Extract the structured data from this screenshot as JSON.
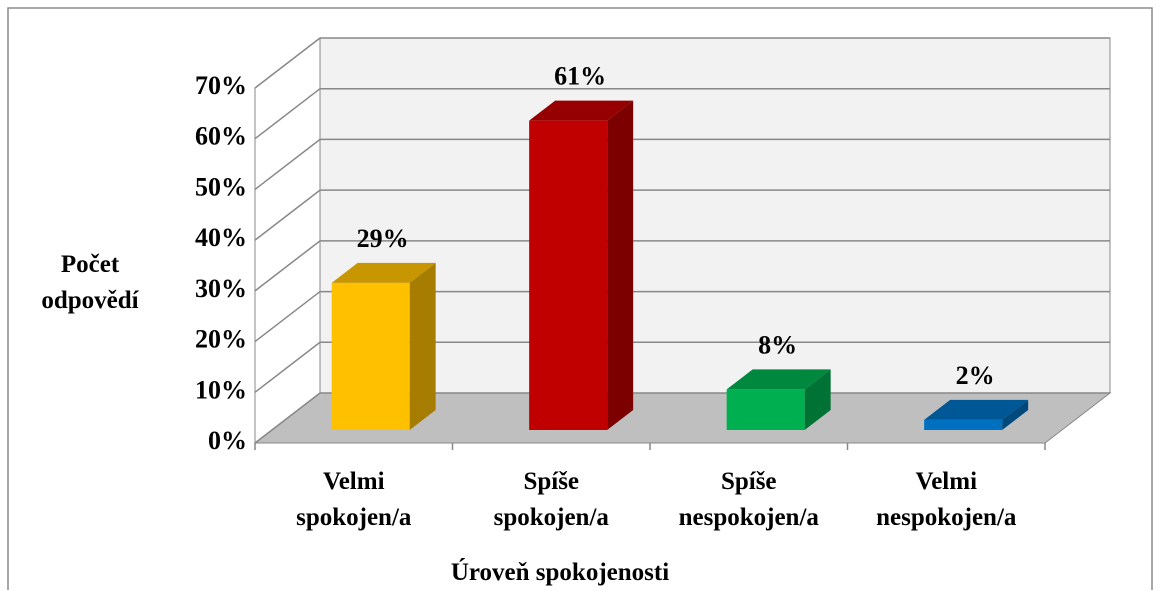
{
  "chart_data": {
    "type": "bar3d",
    "x_label": "Úroveň spokojenosti",
    "y_label": "Počet\nodpovědí",
    "categories": [
      "Velmi\nspokojen/a",
      "Spíše\nspokojen/a",
      "Spíše\nnespokojen/a",
      "Velmi\nnespokojen/a"
    ],
    "values": [
      29,
      61,
      8,
      2
    ],
    "value_labels": [
      "29%",
      "61%",
      "8%",
      "2%"
    ],
    "colors": [
      "#ffc000",
      "#c00000",
      "#00b050",
      "#0070c0"
    ],
    "ylim": [
      0,
      70
    ],
    "yticks": [
      {
        "value": 0,
        "label": "0%"
      },
      {
        "value": 10,
        "label": "10%"
      },
      {
        "value": 20,
        "label": "20%"
      },
      {
        "value": 30,
        "label": "30%"
      },
      {
        "value": 40,
        "label": "40%"
      },
      {
        "value": 50,
        "label": "50%"
      },
      {
        "value": 60,
        "label": "60%"
      },
      {
        "value": 70,
        "label": "70%"
      }
    ],
    "grid": true
  }
}
